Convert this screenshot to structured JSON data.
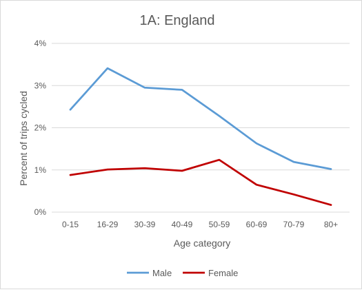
{
  "chart_data": {
    "type": "line",
    "title": "1A: England",
    "xlabel": "Age category",
    "ylabel": "Percent of trips cycled",
    "categories": [
      "0-15",
      "16-29",
      "30-39",
      "40-49",
      "50-59",
      "60-69",
      "70-79",
      "80+"
    ],
    "ylim": [
      0,
      4
    ],
    "yticks": [
      "0%",
      "1%",
      "2%",
      "3%",
      "4%"
    ],
    "grid": true,
    "legend": "bottom",
    "series": [
      {
        "name": "Male",
        "color": "#5b9bd5",
        "values": [
          2.43,
          3.41,
          2.95,
          2.9,
          2.28,
          1.63,
          1.19,
          1.02
        ]
      },
      {
        "name": "Female",
        "color": "#c00000",
        "values": [
          0.88,
          1.01,
          1.04,
          0.98,
          1.24,
          0.65,
          0.42,
          0.17
        ]
      }
    ]
  }
}
